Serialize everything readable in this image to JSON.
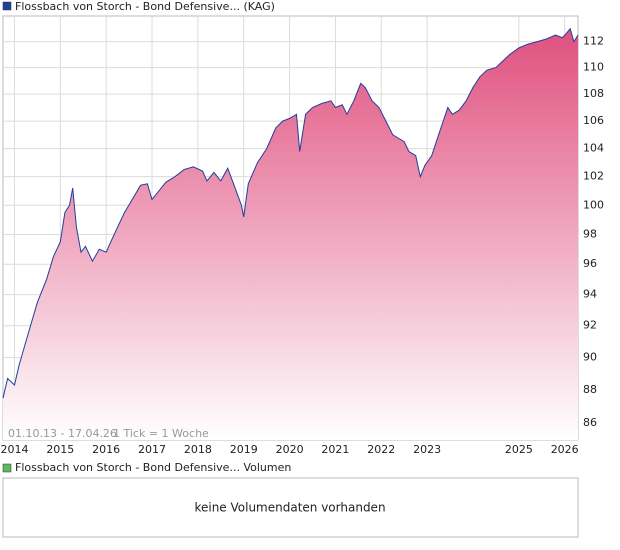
{
  "chart_data": {
    "type": "area",
    "title": "Flossbach von Storch - Bond Defensive... (KAG)",
    "color": "#1f3f9a",
    "fill_top": "#e0507f",
    "log_scale": true,
    "grid": true,
    "x": [
      2013.75,
      2013.85,
      2014.0,
      2014.1,
      2014.3,
      2014.5,
      2014.7,
      2014.85,
      2015.0,
      2015.1,
      2015.2,
      2015.27,
      2015.35,
      2015.45,
      2015.55,
      2015.7,
      2015.85,
      2016.0,
      2016.1,
      2016.25,
      2016.4,
      2016.55,
      2016.75,
      2016.9,
      2017.0,
      2017.15,
      2017.3,
      2017.5,
      2017.7,
      2017.9,
      2018.1,
      2018.2,
      2018.35,
      2018.5,
      2018.65,
      2018.8,
      2018.95,
      2019.0,
      2019.1,
      2019.3,
      2019.5,
      2019.7,
      2019.85,
      2020.0,
      2020.15,
      2020.22,
      2020.35,
      2020.5,
      2020.7,
      2020.9,
      2021.0,
      2021.15,
      2021.25,
      2021.4,
      2021.55,
      2021.65,
      2021.8,
      2021.95,
      2022.1,
      2022.25,
      2022.35,
      2022.5,
      2022.6,
      2022.75,
      2022.85,
      2022.95,
      2023.1,
      2023.2,
      2023.35,
      2023.45,
      2023.55,
      2023.7,
      2023.85,
      2024.0,
      2024.15,
      2024.3,
      2024.5,
      2024.65,
      2024.8,
      2025.0,
      2025.2,
      2025.4,
      2025.6,
      2025.8,
      2025.95,
      2026.05,
      2026.12,
      2026.2,
      2026.29
    ],
    "values": [
      87.5,
      88.7,
      88.3,
      89.5,
      91.5,
      93.5,
      95.0,
      96.5,
      97.5,
      99.5,
      100.0,
      101.2,
      98.5,
      96.8,
      97.2,
      96.2,
      97.0,
      96.8,
      97.5,
      98.5,
      99.5,
      100.3,
      101.4,
      101.5,
      100.4,
      101.0,
      101.6,
      102.0,
      102.5,
      102.7,
      102.4,
      101.7,
      102.3,
      101.7,
      102.6,
      101.3,
      100.0,
      99.2,
      101.5,
      103.0,
      104.0,
      105.5,
      106.0,
      106.2,
      106.5,
      103.8,
      106.5,
      107.0,
      107.3,
      107.5,
      107.0,
      107.2,
      106.5,
      107.5,
      108.8,
      108.5,
      107.5,
      107.0,
      106.0,
      105.0,
      104.8,
      104.5,
      103.8,
      103.5,
      102.0,
      102.8,
      103.5,
      104.5,
      106.0,
      107.0,
      106.5,
      106.8,
      107.5,
      108.5,
      109.3,
      109.8,
      110.0,
      110.5,
      111.0,
      111.5,
      111.8,
      112.0,
      112.2,
      112.5,
      112.3,
      112.7,
      113.0,
      112.0,
      112.5
    ],
    "xlim": [
      2013.75,
      2026.29
    ],
    "ylim": [
      85,
      114
    ],
    "xticks": [
      2014,
      2015,
      2016,
      2017,
      2018,
      2019,
      2020,
      2021,
      2022,
      2023,
      2025,
      2026
    ],
    "yticks": [
      86,
      88,
      90,
      92,
      94,
      96,
      98,
      100,
      102,
      104,
      106,
      108,
      110,
      112
    ],
    "date_range": "01.10.13 - 17.04.26",
    "tick_note": "1 Tick = 1 Woche"
  },
  "volume_panel": {
    "legend": "Flossbach von Storch - Bond Defensive... Volumen",
    "message": "keine Volumendaten vorhanden"
  }
}
